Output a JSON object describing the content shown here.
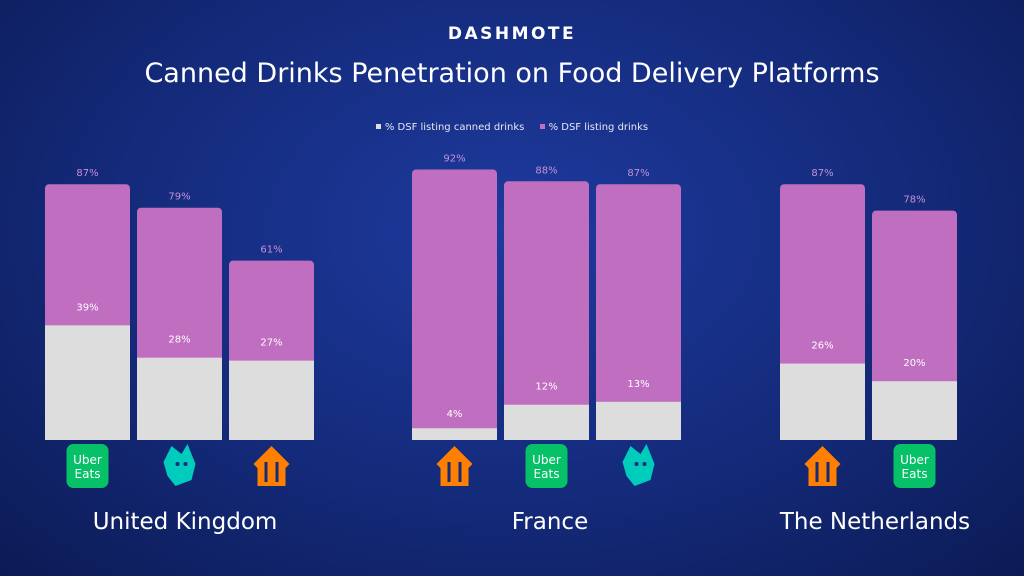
{
  "brand": "DASHMOTE",
  "chart_data": {
    "type": "bar",
    "title": "Canned Drinks Penetration on Food Delivery Platforms",
    "legend": [
      {
        "label": "% DSF listing canned drinks",
        "color": "#dddddd"
      },
      {
        "label": "% DSF listing drinks",
        "color": "#c06ec0"
      }
    ],
    "ylim": [
      0,
      100
    ],
    "groups": [
      {
        "name": "United Kingdom",
        "bars": [
          {
            "platform": "Uber Eats",
            "canned": 39,
            "drinks": 87
          },
          {
            "platform": "Deliveroo",
            "canned": 28,
            "drinks": 79
          },
          {
            "platform": "Just Eat",
            "canned": 27,
            "drinks": 61
          }
        ]
      },
      {
        "name": "France",
        "bars": [
          {
            "platform": "Just Eat",
            "canned": 4,
            "drinks": 92
          },
          {
            "platform": "Uber Eats",
            "canned": 12,
            "drinks": 88
          },
          {
            "platform": "Deliveroo",
            "canned": 13,
            "drinks": 87
          }
        ]
      },
      {
        "name": "The Netherlands",
        "bars": [
          {
            "platform": "Just Eat",
            "canned": 26,
            "drinks": 87
          },
          {
            "platform": "Uber Eats",
            "canned": 20,
            "drinks": 78
          }
        ]
      }
    ]
  },
  "logos": {
    "uber_line1": "Uber",
    "uber_line2": "Eats"
  },
  "colors": {
    "drinks": "#c06ec0",
    "canned": "#dddddd",
    "uber": "#06c167",
    "deliveroo": "#00ccbc",
    "justeat": "#ff8000",
    "drinks_label": "#c58fd6",
    "canned_label": "#ffffff",
    "canned_label_dark": "#9a9a9a"
  }
}
